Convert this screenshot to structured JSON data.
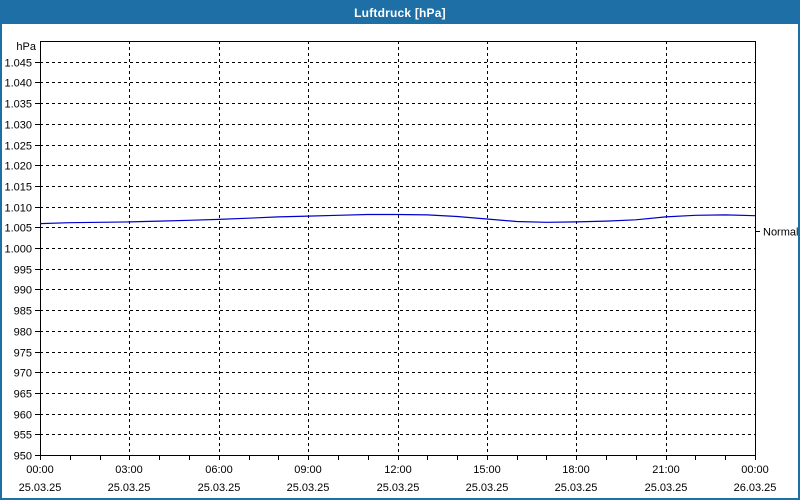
{
  "window": {
    "title": "Luftdruck [hPa]"
  },
  "colors": {
    "titlebar_bg": "#1d6fa5",
    "titlebar_text": "#ffffff",
    "window_border": "#1d6fa5",
    "chart_bg": "#ffffff",
    "plot_border": "#000000",
    "gridline": "#000000",
    "tick": "#000000",
    "label_text": "#000000",
    "series_line": "#0000cc"
  },
  "chart_data": {
    "type": "line",
    "title": "Luftdruck [hPa]",
    "y_unit_label": "hPa",
    "ylim": [
      950,
      1050
    ],
    "ytick_step": 5,
    "grid": "dashed",
    "yticks": [
      {
        "v": 1045,
        "label": "1.045"
      },
      {
        "v": 1040,
        "label": "1.040"
      },
      {
        "v": 1035,
        "label": "1.035"
      },
      {
        "v": 1030,
        "label": "1.030"
      },
      {
        "v": 1025,
        "label": "1.025"
      },
      {
        "v": 1020,
        "label": "1.020"
      },
      {
        "v": 1015,
        "label": "1.015"
      },
      {
        "v": 1010,
        "label": "1.010"
      },
      {
        "v": 1005,
        "label": "1.005"
      },
      {
        "v": 1000,
        "label": "1.000"
      },
      {
        "v": 995,
        "label": "995"
      },
      {
        "v": 990,
        "label": "990"
      },
      {
        "v": 985,
        "label": "985"
      },
      {
        "v": 980,
        "label": "980"
      },
      {
        "v": 975,
        "label": "975"
      },
      {
        "v": 970,
        "label": "970"
      },
      {
        "v": 965,
        "label": "965"
      },
      {
        "v": 960,
        "label": "960"
      },
      {
        "v": 955,
        "label": "955"
      },
      {
        "v": 950,
        "label": "950"
      }
    ],
    "xlim_hours": [
      0,
      24
    ],
    "xtick_minor_every_hours": 1,
    "xticks_major": [
      {
        "h": 0,
        "time": "00:00",
        "date": "25.03.25"
      },
      {
        "h": 3,
        "time": "03:00",
        "date": "25.03.25"
      },
      {
        "h": 6,
        "time": "06:00",
        "date": "25.03.25"
      },
      {
        "h": 9,
        "time": "09:00",
        "date": "25.03.25"
      },
      {
        "h": 12,
        "time": "12:00",
        "date": "25.03.25"
      },
      {
        "h": 15,
        "time": "15:00",
        "date": "25.03.25"
      },
      {
        "h": 18,
        "time": "18:00",
        "date": "25.03.25"
      },
      {
        "h": 21,
        "time": "21:00",
        "date": "25.03.25"
      },
      {
        "h": 24,
        "time": "00:00",
        "date": "26.03.25"
      }
    ],
    "series": [
      {
        "name": "Luftdruck",
        "color": "#0000cc",
        "x_hours": [
          0,
          1,
          2,
          3,
          4,
          5,
          6,
          7,
          8,
          9,
          10,
          11,
          12,
          13,
          14,
          15,
          16,
          17,
          18,
          19,
          20,
          21,
          22,
          23,
          24
        ],
        "values": [
          1005.9,
          1006.1,
          1006.2,
          1006.3,
          1006.5,
          1006.7,
          1006.9,
          1007.2,
          1007.5,
          1007.7,
          1007.9,
          1008.1,
          1008.1,
          1008.0,
          1007.6,
          1007.0,
          1006.4,
          1006.2,
          1006.3,
          1006.5,
          1006.8,
          1007.5,
          1007.9,
          1008.0,
          1007.8
        ]
      }
    ],
    "annotations": [
      {
        "label": "Normal",
        "value": 1004,
        "side": "right"
      }
    ]
  }
}
